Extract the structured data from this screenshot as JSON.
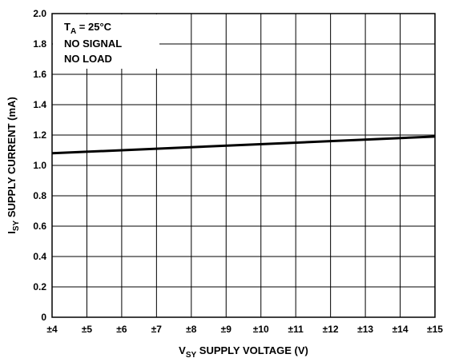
{
  "chart_data": {
    "type": "line",
    "xlabel": {
      "main": "V",
      "sub": "SY",
      "rest": " SUPPLY VOLTAGE (V)"
    },
    "ylabel": {
      "main": "I",
      "sub": "SY",
      "rest": " SUPPLY CURRENT (mA)"
    },
    "xlim": [
      4,
      15
    ],
    "ylim": [
      0,
      2.0
    ],
    "x_ticks": [
      4,
      5,
      6,
      7,
      8,
      9,
      10,
      11,
      12,
      13,
      14,
      15
    ],
    "x_tick_labels": [
      "±4",
      "±5",
      "±6",
      "±7",
      "±8",
      "±9",
      "±10",
      "±11",
      "±12",
      "±13",
      "±14",
      "±15"
    ],
    "y_ticks": [
      0,
      0.2,
      0.4,
      0.6,
      0.8,
      1.0,
      1.2,
      1.4,
      1.6,
      1.8,
      2.0
    ],
    "y_tick_labels": [
      "0",
      "0.2",
      "0.4",
      "0.6",
      "0.8",
      "1.0",
      "1.2",
      "1.4",
      "1.6",
      "1.8",
      "2.0"
    ],
    "grid": true,
    "series": [
      {
        "x": [
          4,
          15
        ],
        "y": [
          1.08,
          1.19
        ],
        "color": "#000000"
      }
    ],
    "annotation": {
      "line1_main": "T",
      "line1_sub": "A",
      "line1_rest": " = 25°C",
      "line2": "NO SIGNAL",
      "line3": "NO LOAD"
    }
  }
}
